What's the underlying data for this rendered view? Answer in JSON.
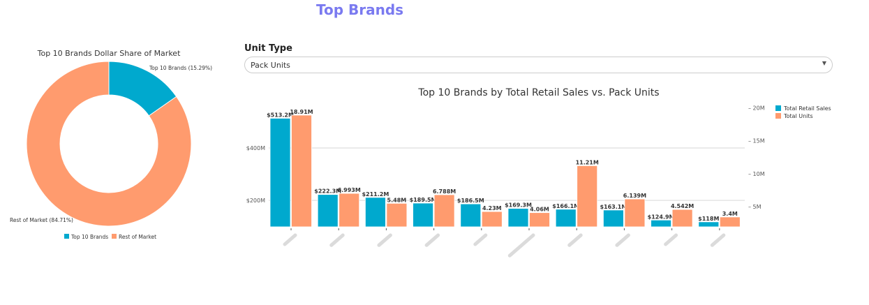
{
  "page_title": "Top Brands",
  "unit_type": {
    "label": "Unit Type",
    "selected": "Pack Units"
  },
  "chart_data": [
    {
      "type": "pie",
      "title": "Top 10 Brands Dollar Share of Market",
      "hole": true,
      "slices": [
        {
          "name": "Top 10 Brands",
          "value": 15.29,
          "label": "Top 10 Brands (15.29%)",
          "color": "#00a9ce"
        },
        {
          "name": "Rest of Market",
          "value": 84.71,
          "label": "Rest of Market (84.71%)",
          "color": "#ff9b6e"
        }
      ],
      "legend": [
        "Top 10 Brands",
        "Rest of Market"
      ],
      "legend_placement": "bottom"
    },
    {
      "type": "bar",
      "title": "Top 10 Brands by Total Retail Sales vs. Pack Units",
      "categories": [
        "",
        "",
        "",
        "",
        "",
        "",
        "",
        "",
        "",
        ""
      ],
      "series": [
        {
          "name": "Total Retail Sales",
          "axis": "left",
          "color": "#00a9ce",
          "values": [
            513.2,
            222.3,
            211.2,
            189.5,
            186.5,
            169.3,
            166.1,
            163.1,
            124.9,
            118
          ],
          "labels": [
            "$513.2M",
            "$222.3M",
            "$211.2M",
            "$189.5M",
            "$186.5M",
            "$169.3M",
            "$166.1M",
            "$163.1M",
            "$124.9M",
            "$118M"
          ]
        },
        {
          "name": "Total Units",
          "axis": "right",
          "color": "#ff9b6e",
          "values": [
            18.91,
            6.993,
            5.48,
            6.788,
            4.23,
            4.06,
            11.21,
            6.139,
            4.542,
            3.4
          ],
          "labels": [
            "18.91M",
            "6.993M",
            "5.48M",
            "6.788M",
            "4.23M",
            "4.06M",
            "11.21M",
            "6.139M",
            "4.542M",
            "3.4M"
          ]
        }
      ],
      "y_left": {
        "ticks": [
          200,
          400
        ],
        "tick_labels": [
          "$200M",
          "$400M"
        ],
        "range": [
          99,
          565
        ]
      },
      "y_right": {
        "ticks": [
          5,
          10,
          15,
          20
        ],
        "tick_labels": [
          "5M",
          "10M",
          "15M",
          "20M"
        ],
        "range": [
          1.9,
          20.5
        ]
      },
      "grid": true,
      "legend_placement": "top-right"
    }
  ]
}
